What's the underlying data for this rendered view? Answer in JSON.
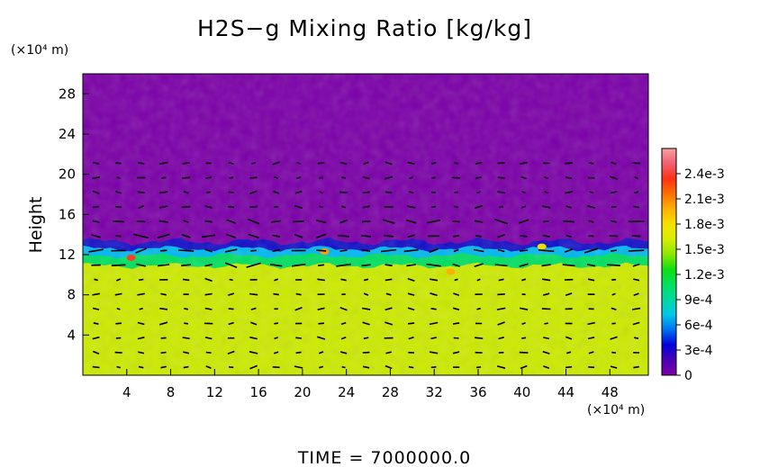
{
  "chart_data": {
    "type": "heatmap",
    "title": "H2S−g Mixing Ratio [kg/kg]",
    "ylabel": "Height",
    "y_unit": "(×10⁴ m)",
    "x_unit": "(×10⁴ m)",
    "footer": "TIME  =  7000000.0",
    "x_ticks": [
      "4",
      "8",
      "12",
      "16",
      "20",
      "24",
      "28",
      "32",
      "36",
      "40",
      "44",
      "48"
    ],
    "y_ticks": [
      "4",
      "8",
      "12",
      "16",
      "20",
      "24",
      "28"
    ],
    "xlim": [
      0,
      51.5
    ],
    "ylim": [
      0,
      30
    ],
    "colorbar": {
      "range": [
        0,
        0.0027
      ],
      "tick_labels": [
        "0",
        "3e-4",
        "6e-4",
        "9e-4",
        "1.2e-3",
        "1.5e-3",
        "1.8e-3",
        "2.1e-3",
        "2.4e-3"
      ],
      "colors": [
        "#7b00a8",
        "#4b00b4",
        "#0000d8",
        "#0070f0",
        "#00c8e8",
        "#00d8a0",
        "#00e060",
        "#10e010",
        "#8ce800",
        "#d8ee00",
        "#f8e000",
        "#ffb000",
        "#ff7000",
        "#ff3018",
        "#f06070",
        "#f8a0a0"
      ]
    },
    "regions": [
      {
        "name": "upper layer",
        "height_range": [
          13,
          30
        ],
        "value": 0.0
      },
      {
        "name": "transition band",
        "height_range": [
          11,
          13.5
        ],
        "value": 0.0012
      },
      {
        "name": "lower layer",
        "height_range": [
          0,
          11
        ],
        "value": 0.00158
      }
    ],
    "overlay": "wind vectors"
  }
}
